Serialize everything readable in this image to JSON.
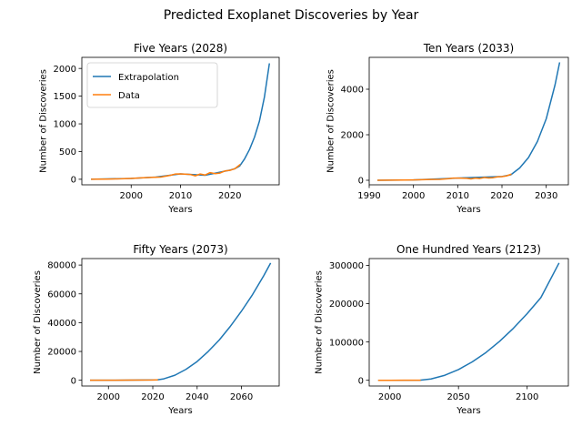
{
  "figure_title": "Predicted Exoplanet Discoveries by Year",
  "colors": {
    "extrapolation": "#1f77b4",
    "data": "#ff7f0e"
  },
  "chart_data": [
    {
      "type": "line",
      "title": "Five Years (2028)",
      "xlabel": "Years",
      "ylabel": "Number of Discoveries",
      "xlim": [
        1990,
        2030
      ],
      "ylim": [
        -100,
        2200
      ],
      "xticks": [
        2000,
        2010,
        2020
      ],
      "yticks": [
        0,
        500,
        1000,
        1500,
        2000
      ],
      "legend": "upper-left",
      "series": [
        {
          "name": "Extrapolation",
          "color": "#1f77b4",
          "x": [
            1992,
            2000,
            2005,
            2010,
            2015,
            2020,
            2021,
            2022,
            2023,
            2024,
            2025,
            2026,
            2027,
            2028
          ],
          "y": [
            0,
            16,
            40,
            97,
            72,
            165,
            190,
            240,
            370,
            540,
            760,
            1050,
            1480,
            2080
          ]
        },
        {
          "name": "Data",
          "color": "#ff7f0e",
          "x": [
            1992,
            1995,
            1998,
            2000,
            2002,
            2004,
            2006,
            2008,
            2009,
            2010,
            2012,
            2013,
            2014,
            2015,
            2016,
            2017,
            2018,
            2019,
            2020,
            2021,
            2022
          ],
          "y": [
            0,
            3,
            8,
            16,
            25,
            33,
            40,
            72,
            96,
            97,
            86,
            62,
            95,
            77,
            120,
            102,
            112,
            150,
            160,
            190,
            260
          ]
        }
      ]
    },
    {
      "type": "line",
      "title": "Ten Years (2033)",
      "xlabel": "Years",
      "ylabel": "Number of Discoveries",
      "xlim": [
        1990,
        2035
      ],
      "ylim": [
        -200,
        5400
      ],
      "xticks": [
        1990,
        2000,
        2010,
        2020,
        2030
      ],
      "yticks": [
        0,
        2000,
        4000
      ],
      "series": [
        {
          "name": "Extrapolation",
          "color": "#1f77b4",
          "x": [
            1992,
            2000,
            2010,
            2020,
            2022,
            2024,
            2026,
            2028,
            2030,
            2032,
            2033
          ],
          "y": [
            0,
            16,
            97,
            165,
            240,
            540,
            1000,
            1700,
            2700,
            4200,
            5150
          ]
        },
        {
          "name": "Data",
          "color": "#ff7f0e",
          "x": [
            1992,
            1995,
            1998,
            2000,
            2002,
            2004,
            2006,
            2008,
            2009,
            2010,
            2012,
            2013,
            2014,
            2015,
            2016,
            2017,
            2018,
            2019,
            2020,
            2021,
            2022
          ],
          "y": [
            0,
            3,
            8,
            16,
            25,
            33,
            40,
            72,
            96,
            97,
            86,
            62,
            95,
            77,
            120,
            102,
            112,
            150,
            160,
            190,
            260
          ]
        }
      ]
    },
    {
      "type": "line",
      "title": "Fifty Years (2073)",
      "xlabel": "Years",
      "ylabel": "Number of Discoveries",
      "xlim": [
        1988,
        2077
      ],
      "ylim": [
        -4000,
        84500
      ],
      "xticks": [
        2000,
        2020,
        2040,
        2060
      ],
      "yticks": [
        0,
        20000,
        40000,
        60000,
        80000
      ],
      "series": [
        {
          "name": "Extrapolation",
          "color": "#1f77b4",
          "x": [
            1992,
            2010,
            2022,
            2025,
            2030,
            2035,
            2040,
            2045,
            2050,
            2055,
            2060,
            2065,
            2070,
            2073
          ],
          "y": [
            0,
            97,
            240,
            1000,
            3500,
            7600,
            13000,
            20000,
            28000,
            37500,
            48000,
            59500,
            72500,
            81000
          ]
        },
        {
          "name": "Data",
          "color": "#ff7f0e",
          "x": [
            1992,
            2000,
            2010,
            2020,
            2022
          ],
          "y": [
            0,
            16,
            97,
            160,
            260
          ]
        }
      ]
    },
    {
      "type": "line",
      "title": "One Hundred Years (2123)",
      "xlabel": "Years",
      "ylabel": "Number of Discoveries",
      "xlim": [
        1985,
        2130
      ],
      "ylim": [
        -15000,
        318000
      ],
      "xticks": [
        2000,
        2050,
        2100
      ],
      "yticks": [
        0,
        100000,
        200000,
        300000
      ],
      "series": [
        {
          "name": "Extrapolation",
          "color": "#1f77b4",
          "x": [
            1992,
            2022,
            2030,
            2040,
            2050,
            2060,
            2070,
            2080,
            2090,
            2100,
            2110,
            2123
          ],
          "y": [
            0,
            240,
            3500,
            13000,
            28000,
            48000,
            72500,
            102000,
            136000,
            174000,
            216000,
            305000
          ]
        },
        {
          "name": "Data",
          "color": "#ff7f0e",
          "x": [
            1992,
            2000,
            2010,
            2020,
            2022
          ],
          "y": [
            0,
            16,
            97,
            160,
            260
          ]
        }
      ]
    }
  ]
}
